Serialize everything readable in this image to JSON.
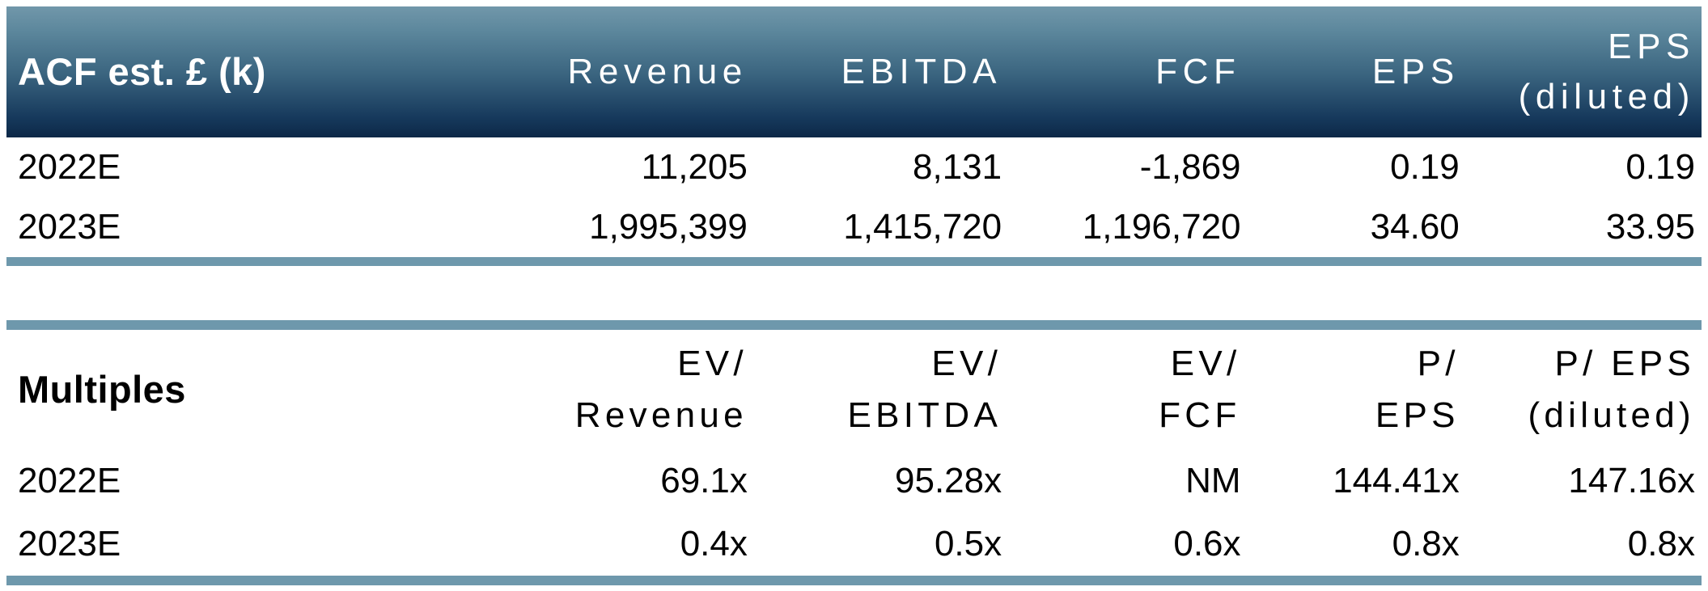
{
  "colors": {
    "header_gradient_top": "#7197aa",
    "header_gradient_bottom": "#0c2847",
    "divider_bar": "#6e98ac",
    "header_text": "#ffffff",
    "body_text": "#000000",
    "background": "#ffffff"
  },
  "estimates": {
    "title": "ACF est. £ (k)",
    "columns": [
      {
        "line1": "Revenue",
        "line2": ""
      },
      {
        "line1": "EBITDA",
        "line2": ""
      },
      {
        "line1": "FCF",
        "line2": ""
      },
      {
        "line1": "EPS",
        "line2": ""
      },
      {
        "line1": "EPS",
        "line2": "(diluted)"
      }
    ],
    "rows": [
      {
        "label": "2022E",
        "values": [
          "11,205",
          "8,131",
          "-1,869",
          "0.19",
          "0.19"
        ]
      },
      {
        "label": "2023E",
        "values": [
          "1,995,399",
          "1,415,720",
          "1,196,720",
          "34.60",
          "33.95"
        ]
      }
    ]
  },
  "multiples": {
    "title": "Multiples",
    "columns": [
      {
        "line1": "EV/",
        "line2": "Revenue"
      },
      {
        "line1": "EV/",
        "line2": "EBITDA"
      },
      {
        "line1": "EV/",
        "line2": "FCF"
      },
      {
        "line1": "P/",
        "line2": "EPS"
      },
      {
        "line1": "P/ EPS",
        "line2": "(diluted)"
      }
    ],
    "rows": [
      {
        "label": "2022E",
        "values": [
          "69.1x",
          "95.28x",
          "NM",
          "144.41x",
          "147.16x"
        ]
      },
      {
        "label": "2023E",
        "values": [
          "0.4x",
          "0.5x",
          "0.6x",
          "0.8x",
          "0.8x"
        ]
      }
    ]
  }
}
